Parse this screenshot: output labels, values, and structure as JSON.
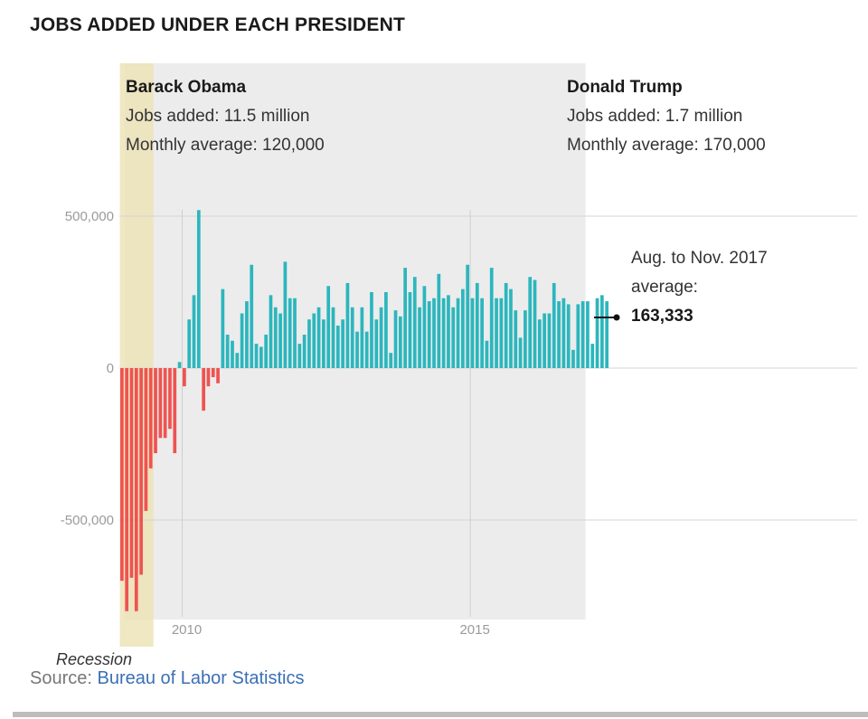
{
  "chart_data": {
    "type": "bar",
    "title": "JOBS ADDED UNDER EACH PRESIDENT",
    "y_ticks": [
      500000,
      0,
      -500000
    ],
    "y_tick_labels": [
      "500,000",
      "0",
      "-500,000"
    ],
    "x_ticks": [
      2010,
      2015
    ],
    "x_tick_labels": [
      "2010",
      "2015"
    ],
    "ylim": [
      -820000,
      500000
    ],
    "start_month": "2008-12",
    "series": [
      {
        "values": [
          -700000,
          -800000,
          -690000,
          -800000,
          -680000,
          -470000,
          -330000,
          -280000,
          -230000,
          -230000,
          -200000,
          -280000,
          20000,
          -60000,
          160000,
          240000,
          520000,
          -140000,
          -60000,
          -30000,
          -50000,
          260000,
          110000,
          90000,
          50000,
          180000,
          220000,
          340000,
          80000,
          70000,
          110000,
          240000,
          200000,
          180000,
          350000,
          230000,
          230000,
          80000,
          110000,
          160000,
          180000,
          200000,
          160000,
          270000,
          200000,
          140000,
          160000,
          280000,
          200000,
          120000,
          200000,
          120000,
          250000,
          160000,
          200000,
          250000,
          50000,
          190000,
          170000,
          330000,
          250000,
          300000,
          200000,
          270000,
          220000,
          230000,
          310000,
          230000,
          240000,
          200000,
          230000,
          260000,
          340000,
          230000,
          280000,
          230000,
          90000,
          330000,
          230000,
          230000,
          280000,
          260000,
          190000,
          100000,
          190000,
          300000,
          290000,
          160000,
          180000,
          180000,
          280000,
          220000,
          230000,
          210000,
          60000,
          210000,
          220000,
          220000,
          80000,
          230000,
          240000,
          220000
        ]
      }
    ],
    "colors": {
      "positive": "#2cb6bd",
      "negative": "#ef5350",
      "recession_band": "#ede3b8",
      "obama_band": "#ececec"
    },
    "shaded_ranges": [
      {
        "name": "Recession",
        "from": "2008-12",
        "to": "2009-06"
      },
      {
        "name": "Barack Obama",
        "from": "2009-01",
        "to": "2017-01"
      }
    ],
    "grid": true
  },
  "header": {
    "title": "JOBS ADDED UNDER EACH PRESIDENT"
  },
  "presidents": {
    "obama": {
      "name": "Barack Obama",
      "jobs": "Jobs added: 11.5 million",
      "avg": "Monthly average: 120,000"
    },
    "trump": {
      "name": "Donald Trump",
      "jobs": "Jobs added: 1.7 million",
      "avg": "Monthly average: 170,000"
    }
  },
  "annotation": {
    "line1": "Aug. to Nov. 2017",
    "line2": "average:",
    "value": "163,333"
  },
  "recession_label": "Recession",
  "source": {
    "prefix": "Source: ",
    "link": "Bureau of Labor Statistics"
  }
}
